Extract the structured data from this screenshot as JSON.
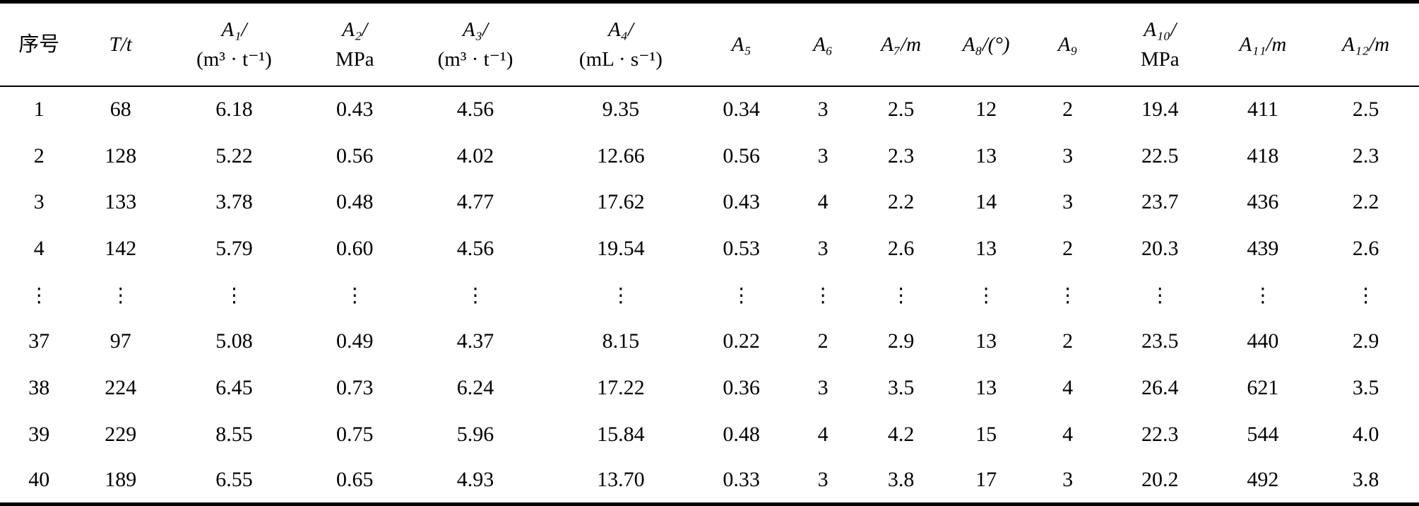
{
  "chart_data": {
    "type": "table",
    "title": "",
    "columns": [
      {
        "id": "xuhao",
        "line1": "序号",
        "line2": "",
        "italic": false
      },
      {
        "id": "T_t",
        "line1": "T/t",
        "line2": "",
        "italic": true
      },
      {
        "id": "A1",
        "line1": "A₁/",
        "line2": "(m³ · t⁻¹)",
        "italic": true
      },
      {
        "id": "A2",
        "line1": "A₂/",
        "line2": "MPa",
        "italic": true
      },
      {
        "id": "A3",
        "line1": "A₃/",
        "line2": "(m³ · t⁻¹)",
        "italic": true
      },
      {
        "id": "A4",
        "line1": "A₄/",
        "line2": "(mL · s⁻¹)",
        "italic": true
      },
      {
        "id": "A5",
        "line1": "A₅",
        "line2": "",
        "italic": true
      },
      {
        "id": "A6",
        "line1": "A₆",
        "line2": "",
        "italic": true
      },
      {
        "id": "A7",
        "line1": "A₇/m",
        "line2": "",
        "italic": true
      },
      {
        "id": "A8",
        "line1": "A₈/(°)",
        "line2": "",
        "italic": true
      },
      {
        "id": "A9",
        "line1": "A₉",
        "line2": "",
        "italic": true
      },
      {
        "id": "A10",
        "line1": "A₁₀/",
        "line2": "MPa",
        "italic": true
      },
      {
        "id": "A11",
        "line1": "A₁₁/m",
        "line2": "",
        "italic": true
      },
      {
        "id": "A12",
        "line1": "A₁₂/m",
        "line2": "",
        "italic": true
      }
    ],
    "rows": [
      [
        "1",
        "68",
        "6.18",
        "0.43",
        "4.56",
        "9.35",
        "0.34",
        "3",
        "2.5",
        "12",
        "2",
        "19.4",
        "411",
        "2.5"
      ],
      [
        "2",
        "128",
        "5.22",
        "0.56",
        "4.02",
        "12.66",
        "0.56",
        "3",
        "2.3",
        "13",
        "3",
        "22.5",
        "418",
        "2.3"
      ],
      [
        "3",
        "133",
        "3.78",
        "0.48",
        "4.77",
        "17.62",
        "0.43",
        "4",
        "2.2",
        "14",
        "3",
        "23.7",
        "436",
        "2.2"
      ],
      [
        "4",
        "142",
        "5.79",
        "0.60",
        "4.56",
        "19.54",
        "0.53",
        "3",
        "2.6",
        "13",
        "2",
        "20.3",
        "439",
        "2.6"
      ],
      [
        "⋮",
        "⋮",
        "⋮",
        "⋮",
        "⋮",
        "⋮",
        "⋮",
        "⋮",
        "⋮",
        "⋮",
        "⋮",
        "⋮",
        "⋮",
        "⋮"
      ],
      [
        "37",
        "97",
        "5.08",
        "0.49",
        "4.37",
        "8.15",
        "0.22",
        "2",
        "2.9",
        "13",
        "2",
        "23.5",
        "440",
        "2.9"
      ],
      [
        "38",
        "224",
        "6.45",
        "0.73",
        "6.24",
        "17.22",
        "0.36",
        "3",
        "3.5",
        "13",
        "4",
        "26.4",
        "621",
        "3.5"
      ],
      [
        "39",
        "229",
        "8.55",
        "0.75",
        "5.96",
        "15.84",
        "0.48",
        "4",
        "4.2",
        "15",
        "4",
        "22.3",
        "544",
        "4.0"
      ],
      [
        "40",
        "189",
        "6.55",
        "0.65",
        "4.93",
        "13.70",
        "0.33",
        "3",
        "3.8",
        "17",
        "3",
        "20.2",
        "492",
        "3.8"
      ]
    ]
  }
}
